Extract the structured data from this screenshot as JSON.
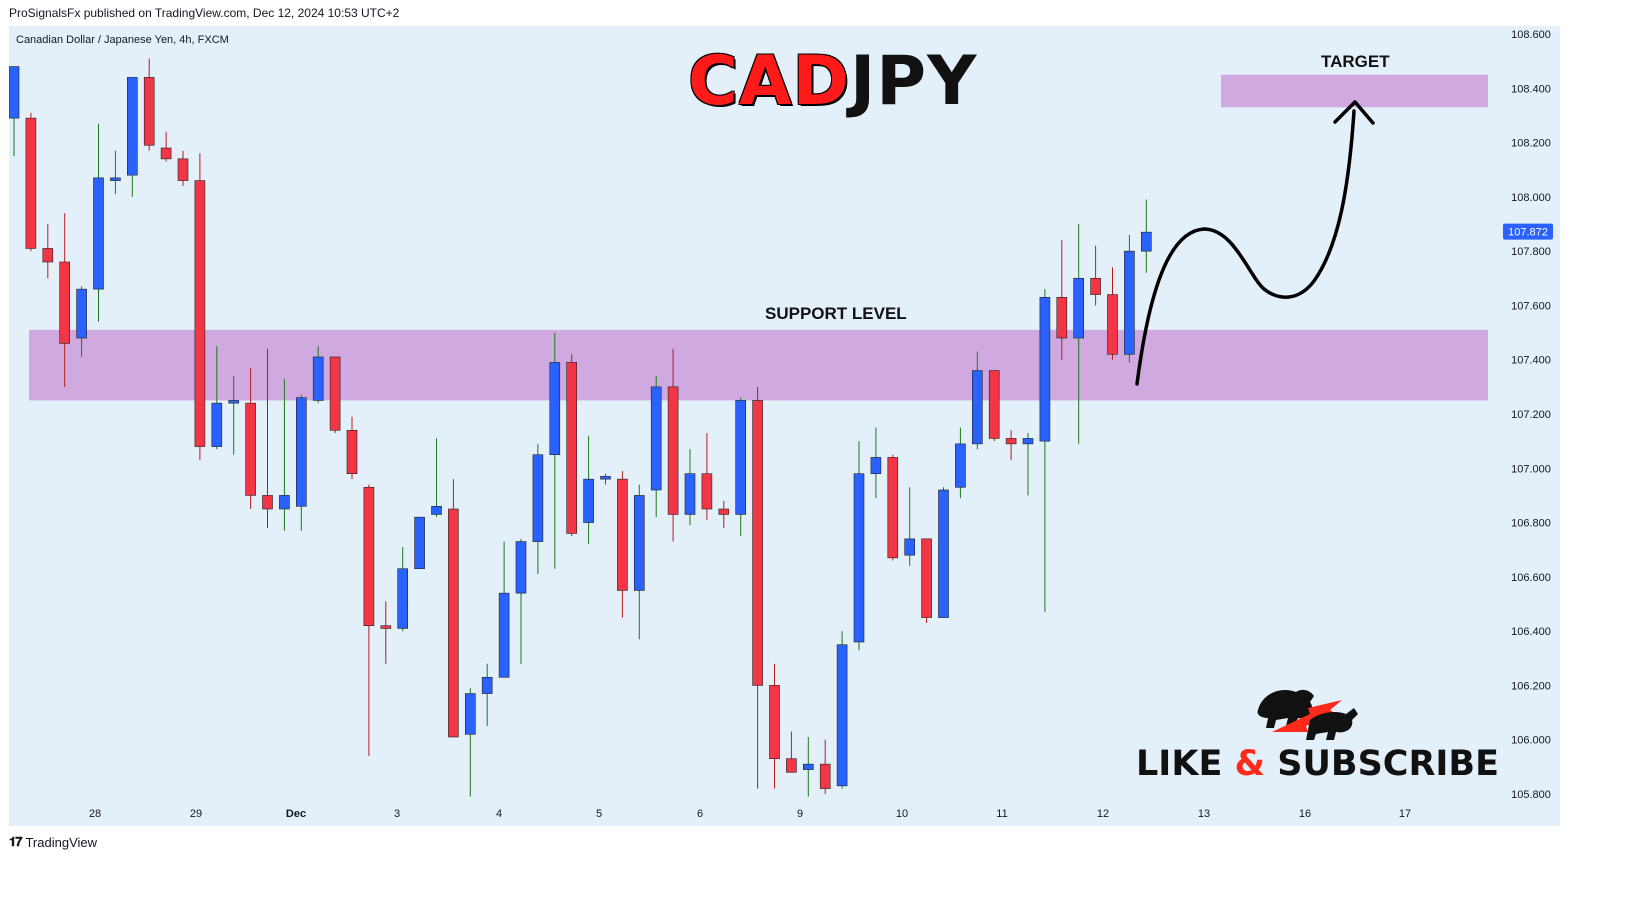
{
  "header": {
    "published": "ProSignalsFx published on TradingView.com, Dec 12, 2024 10:53 UTC+2"
  },
  "chart_title": "Canadian Dollar / Japanese Yen, 4h, FXCM",
  "branding": {
    "symbol_part1": "CAD",
    "symbol_part2": "JPY",
    "subscribe_part1": "LIKE ",
    "subscribe_amp": "&",
    "subscribe_part2": " SUBSCRIBE",
    "logo_icon": "bull-bear-logo-icon"
  },
  "annotations": {
    "support_label": "SUPPORT LEVEL",
    "target_label": "TARGET"
  },
  "footer": {
    "logo_text": "TradingView",
    "logo_icon": "tradingview-logo-icon"
  },
  "colors": {
    "background": "#e3f0fa",
    "bull": "#2962ff",
    "bear": "#f23645",
    "zone": "#cfa9e0",
    "price_tag": "#2962ff"
  },
  "chart_data": {
    "type": "candlestick",
    "title": "Canadian Dollar / Japanese Yen, 4h, FXCM",
    "ylim": [
      105.8,
      108.6
    ],
    "y_ticks": [
      "108.600",
      "108.400",
      "108.200",
      "108.000",
      "107.800",
      "107.600",
      "107.400",
      "107.200",
      "107.000",
      "106.800",
      "106.600",
      "106.400",
      "106.200",
      "106.000",
      "105.800"
    ],
    "x_ticks": [
      "28",
      "29",
      "Dec",
      "3",
      "4",
      "5",
      "6",
      "9",
      "10",
      "11",
      "12",
      "13",
      "16",
      "17"
    ],
    "last_price": "107.872",
    "support_zone": [
      107.25,
      107.51
    ],
    "target_zone": [
      108.33,
      108.45
    ],
    "candles": [
      {
        "o": 108.29,
        "h": 108.48,
        "l": 108.15,
        "c": 108.48
      },
      {
        "o": 108.29,
        "h": 108.31,
        "l": 107.8,
        "c": 107.81
      },
      {
        "o": 107.81,
        "h": 107.9,
        "l": 107.7,
        "c": 107.76
      },
      {
        "o": 107.76,
        "h": 107.94,
        "l": 107.3,
        "c": 107.46
      },
      {
        "o": 107.48,
        "h": 107.67,
        "l": 107.41,
        "c": 107.66
      },
      {
        "o": 107.66,
        "h": 108.27,
        "l": 107.54,
        "c": 108.07
      },
      {
        "o": 108.06,
        "h": 108.17,
        "l": 108.01,
        "c": 108.07
      },
      {
        "o": 108.08,
        "h": 108.44,
        "l": 108.0,
        "c": 108.44
      },
      {
        "o": 108.44,
        "h": 108.51,
        "l": 108.17,
        "c": 108.19
      },
      {
        "o": 108.18,
        "h": 108.24,
        "l": 108.13,
        "c": 108.14
      },
      {
        "o": 108.14,
        "h": 108.17,
        "l": 108.04,
        "c": 108.06
      },
      {
        "o": 108.06,
        "h": 108.16,
        "l": 107.03,
        "c": 107.08
      },
      {
        "o": 107.08,
        "h": 107.45,
        "l": 107.07,
        "c": 107.24
      },
      {
        "o": 107.24,
        "h": 107.34,
        "l": 107.05,
        "c": 107.25
      },
      {
        "o": 107.24,
        "h": 107.37,
        "l": 106.85,
        "c": 106.9
      },
      {
        "o": 106.9,
        "h": 107.44,
        "l": 106.78,
        "c": 106.85
      },
      {
        "o": 106.85,
        "h": 107.33,
        "l": 106.77,
        "c": 106.9
      },
      {
        "o": 106.86,
        "h": 107.27,
        "l": 106.77,
        "c": 107.26
      },
      {
        "o": 107.25,
        "h": 107.45,
        "l": 107.24,
        "c": 107.41
      },
      {
        "o": 107.41,
        "h": 107.41,
        "l": 107.13,
        "c": 107.14
      },
      {
        "o": 107.14,
        "h": 107.19,
        "l": 106.96,
        "c": 106.98
      },
      {
        "o": 106.93,
        "h": 106.94,
        "l": 105.94,
        "c": 106.42
      },
      {
        "o": 106.42,
        "h": 106.51,
        "l": 106.28,
        "c": 106.41
      },
      {
        "o": 106.41,
        "h": 106.71,
        "l": 106.4,
        "c": 106.63
      },
      {
        "o": 106.63,
        "h": 106.81,
        "l": 106.63,
        "c": 106.82
      },
      {
        "o": 106.83,
        "h": 107.11,
        "l": 106.82,
        "c": 106.86
      },
      {
        "o": 106.85,
        "h": 106.96,
        "l": 106.01,
        "c": 106.01
      },
      {
        "o": 106.02,
        "h": 106.19,
        "l": 105.79,
        "c": 106.17
      },
      {
        "o": 106.17,
        "h": 106.28,
        "l": 106.05,
        "c": 106.23
      },
      {
        "o": 106.23,
        "h": 106.73,
        "l": 106.23,
        "c": 106.54
      },
      {
        "o": 106.54,
        "h": 106.74,
        "l": 106.28,
        "c": 106.73
      },
      {
        "o": 106.73,
        "h": 107.09,
        "l": 106.61,
        "c": 107.05
      },
      {
        "o": 107.05,
        "h": 107.5,
        "l": 106.63,
        "c": 107.39
      },
      {
        "o": 107.39,
        "h": 107.42,
        "l": 106.75,
        "c": 106.76
      },
      {
        "o": 106.8,
        "h": 107.12,
        "l": 106.72,
        "c": 106.96
      },
      {
        "o": 106.96,
        "h": 106.98,
        "l": 106.94,
        "c": 106.97
      },
      {
        "o": 106.96,
        "h": 106.99,
        "l": 106.45,
        "c": 106.55
      },
      {
        "o": 106.55,
        "h": 106.94,
        "l": 106.37,
        "c": 106.9
      },
      {
        "o": 106.92,
        "h": 107.34,
        "l": 106.82,
        "c": 107.3
      },
      {
        "o": 107.3,
        "h": 107.44,
        "l": 106.73,
        "c": 106.83
      },
      {
        "o": 106.83,
        "h": 107.07,
        "l": 106.79,
        "c": 106.98
      },
      {
        "o": 106.98,
        "h": 107.13,
        "l": 106.81,
        "c": 106.85
      },
      {
        "o": 106.85,
        "h": 106.88,
        "l": 106.78,
        "c": 106.83
      },
      {
        "o": 106.83,
        "h": 107.26,
        "l": 106.75,
        "c": 107.25
      },
      {
        "o": 107.25,
        "h": 107.3,
        "l": 105.82,
        "c": 106.2
      },
      {
        "o": 106.2,
        "h": 106.28,
        "l": 105.82,
        "c": 105.93
      },
      {
        "o": 105.93,
        "h": 106.03,
        "l": 105.88,
        "c": 105.88
      },
      {
        "o": 105.89,
        "h": 106.01,
        "l": 105.79,
        "c": 105.91
      },
      {
        "o": 105.91,
        "h": 106.0,
        "l": 105.8,
        "c": 105.82
      },
      {
        "o": 105.83,
        "h": 106.4,
        "l": 105.82,
        "c": 106.35
      },
      {
        "o": 106.36,
        "h": 107.1,
        "l": 106.33,
        "c": 106.98
      },
      {
        "o": 106.98,
        "h": 107.15,
        "l": 106.89,
        "c": 107.04
      },
      {
        "o": 107.04,
        "h": 107.05,
        "l": 106.66,
        "c": 106.67
      },
      {
        "o": 106.68,
        "h": 106.93,
        "l": 106.64,
        "c": 106.74
      },
      {
        "o": 106.74,
        "h": 106.74,
        "l": 106.43,
        "c": 106.45
      },
      {
        "o": 106.45,
        "h": 106.93,
        "l": 106.45,
        "c": 106.92
      },
      {
        "o": 106.93,
        "h": 107.15,
        "l": 106.89,
        "c": 107.09
      },
      {
        "o": 107.09,
        "h": 107.43,
        "l": 107.07,
        "c": 107.36
      },
      {
        "o": 107.36,
        "h": 107.36,
        "l": 107.1,
        "c": 107.11
      },
      {
        "o": 107.11,
        "h": 107.14,
        "l": 107.03,
        "c": 107.09
      },
      {
        "o": 107.09,
        "h": 107.13,
        "l": 106.9,
        "c": 107.11
      },
      {
        "o": 107.1,
        "h": 107.66,
        "l": 106.47,
        "c": 107.63
      },
      {
        "o": 107.63,
        "h": 107.84,
        "l": 107.4,
        "c": 107.48
      },
      {
        "o": 107.48,
        "h": 107.9,
        "l": 107.09,
        "c": 107.7
      },
      {
        "o": 107.7,
        "h": 107.82,
        "l": 107.6,
        "c": 107.64
      },
      {
        "o": 107.64,
        "h": 107.74,
        "l": 107.4,
        "c": 107.42
      },
      {
        "o": 107.42,
        "h": 107.86,
        "l": 107.39,
        "c": 107.8
      },
      {
        "o": 107.8,
        "h": 107.99,
        "l": 107.72,
        "c": 107.87
      }
    ]
  }
}
